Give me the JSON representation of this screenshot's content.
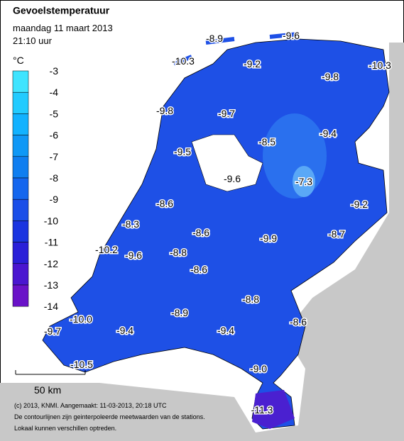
{
  "header": {
    "title": "Gevoelstemperatuur",
    "date": "maandag 11 maart 2013",
    "time": "21:10 uur"
  },
  "legend": {
    "unit": "°C",
    "labels": [
      "-3",
      "-4",
      "-5",
      "-6",
      "-7",
      "-8",
      "-9",
      "-10",
      "-11",
      "-12",
      "-13",
      "-14"
    ],
    "colors": [
      "#3fe4ff",
      "#22cbff",
      "#12b2ff",
      "#0f98f6",
      "#0f7ef0",
      "#1466ee",
      "#1a4ee8",
      "#1a34e0",
      "#2a1fd8",
      "#4a16d0",
      "#6a12c8"
    ]
  },
  "stations": [
    {
      "label": "-8.9"
    },
    {
      "label": "-9.6"
    },
    {
      "label": "-10.3"
    },
    {
      "label": "-9.2"
    },
    {
      "label": "-9.8"
    },
    {
      "label": "-10.3"
    },
    {
      "label": "-9.8"
    },
    {
      "label": "-9.7"
    },
    {
      "label": "-8.5"
    },
    {
      "label": "-9.4"
    },
    {
      "label": "-9.5"
    },
    {
      "label": "-9.6"
    },
    {
      "label": "-7.3"
    },
    {
      "label": "-9.2"
    },
    {
      "label": "-8.6"
    },
    {
      "label": "-8.3"
    },
    {
      "label": "-8.6"
    },
    {
      "label": "-9.9"
    },
    {
      "label": "-8.7"
    },
    {
      "label": "-10.2"
    },
    {
      "label": "-9.6"
    },
    {
      "label": "-8.8"
    },
    {
      "label": "-8.6"
    },
    {
      "label": "-8.8"
    },
    {
      "label": "-8.9"
    },
    {
      "label": "-10.0"
    },
    {
      "label": "-8.6"
    },
    {
      "label": "-9.7"
    },
    {
      "label": "-9.4"
    },
    {
      "label": "-9.4"
    },
    {
      "label": "-10.5"
    },
    {
      "label": "-9.0"
    },
    {
      "label": "-11.3"
    }
  ],
  "scale": {
    "label": "50 km"
  },
  "footer": [
    "(c) 2013, KNMI. Aangemaakt: 11-03-2013, 20:18 UTC",
    "De contourlijnen zijn geinterpoleerde meetwaarden van de stations.",
    "Lokaal kunnen verschillen optreden."
  ]
}
